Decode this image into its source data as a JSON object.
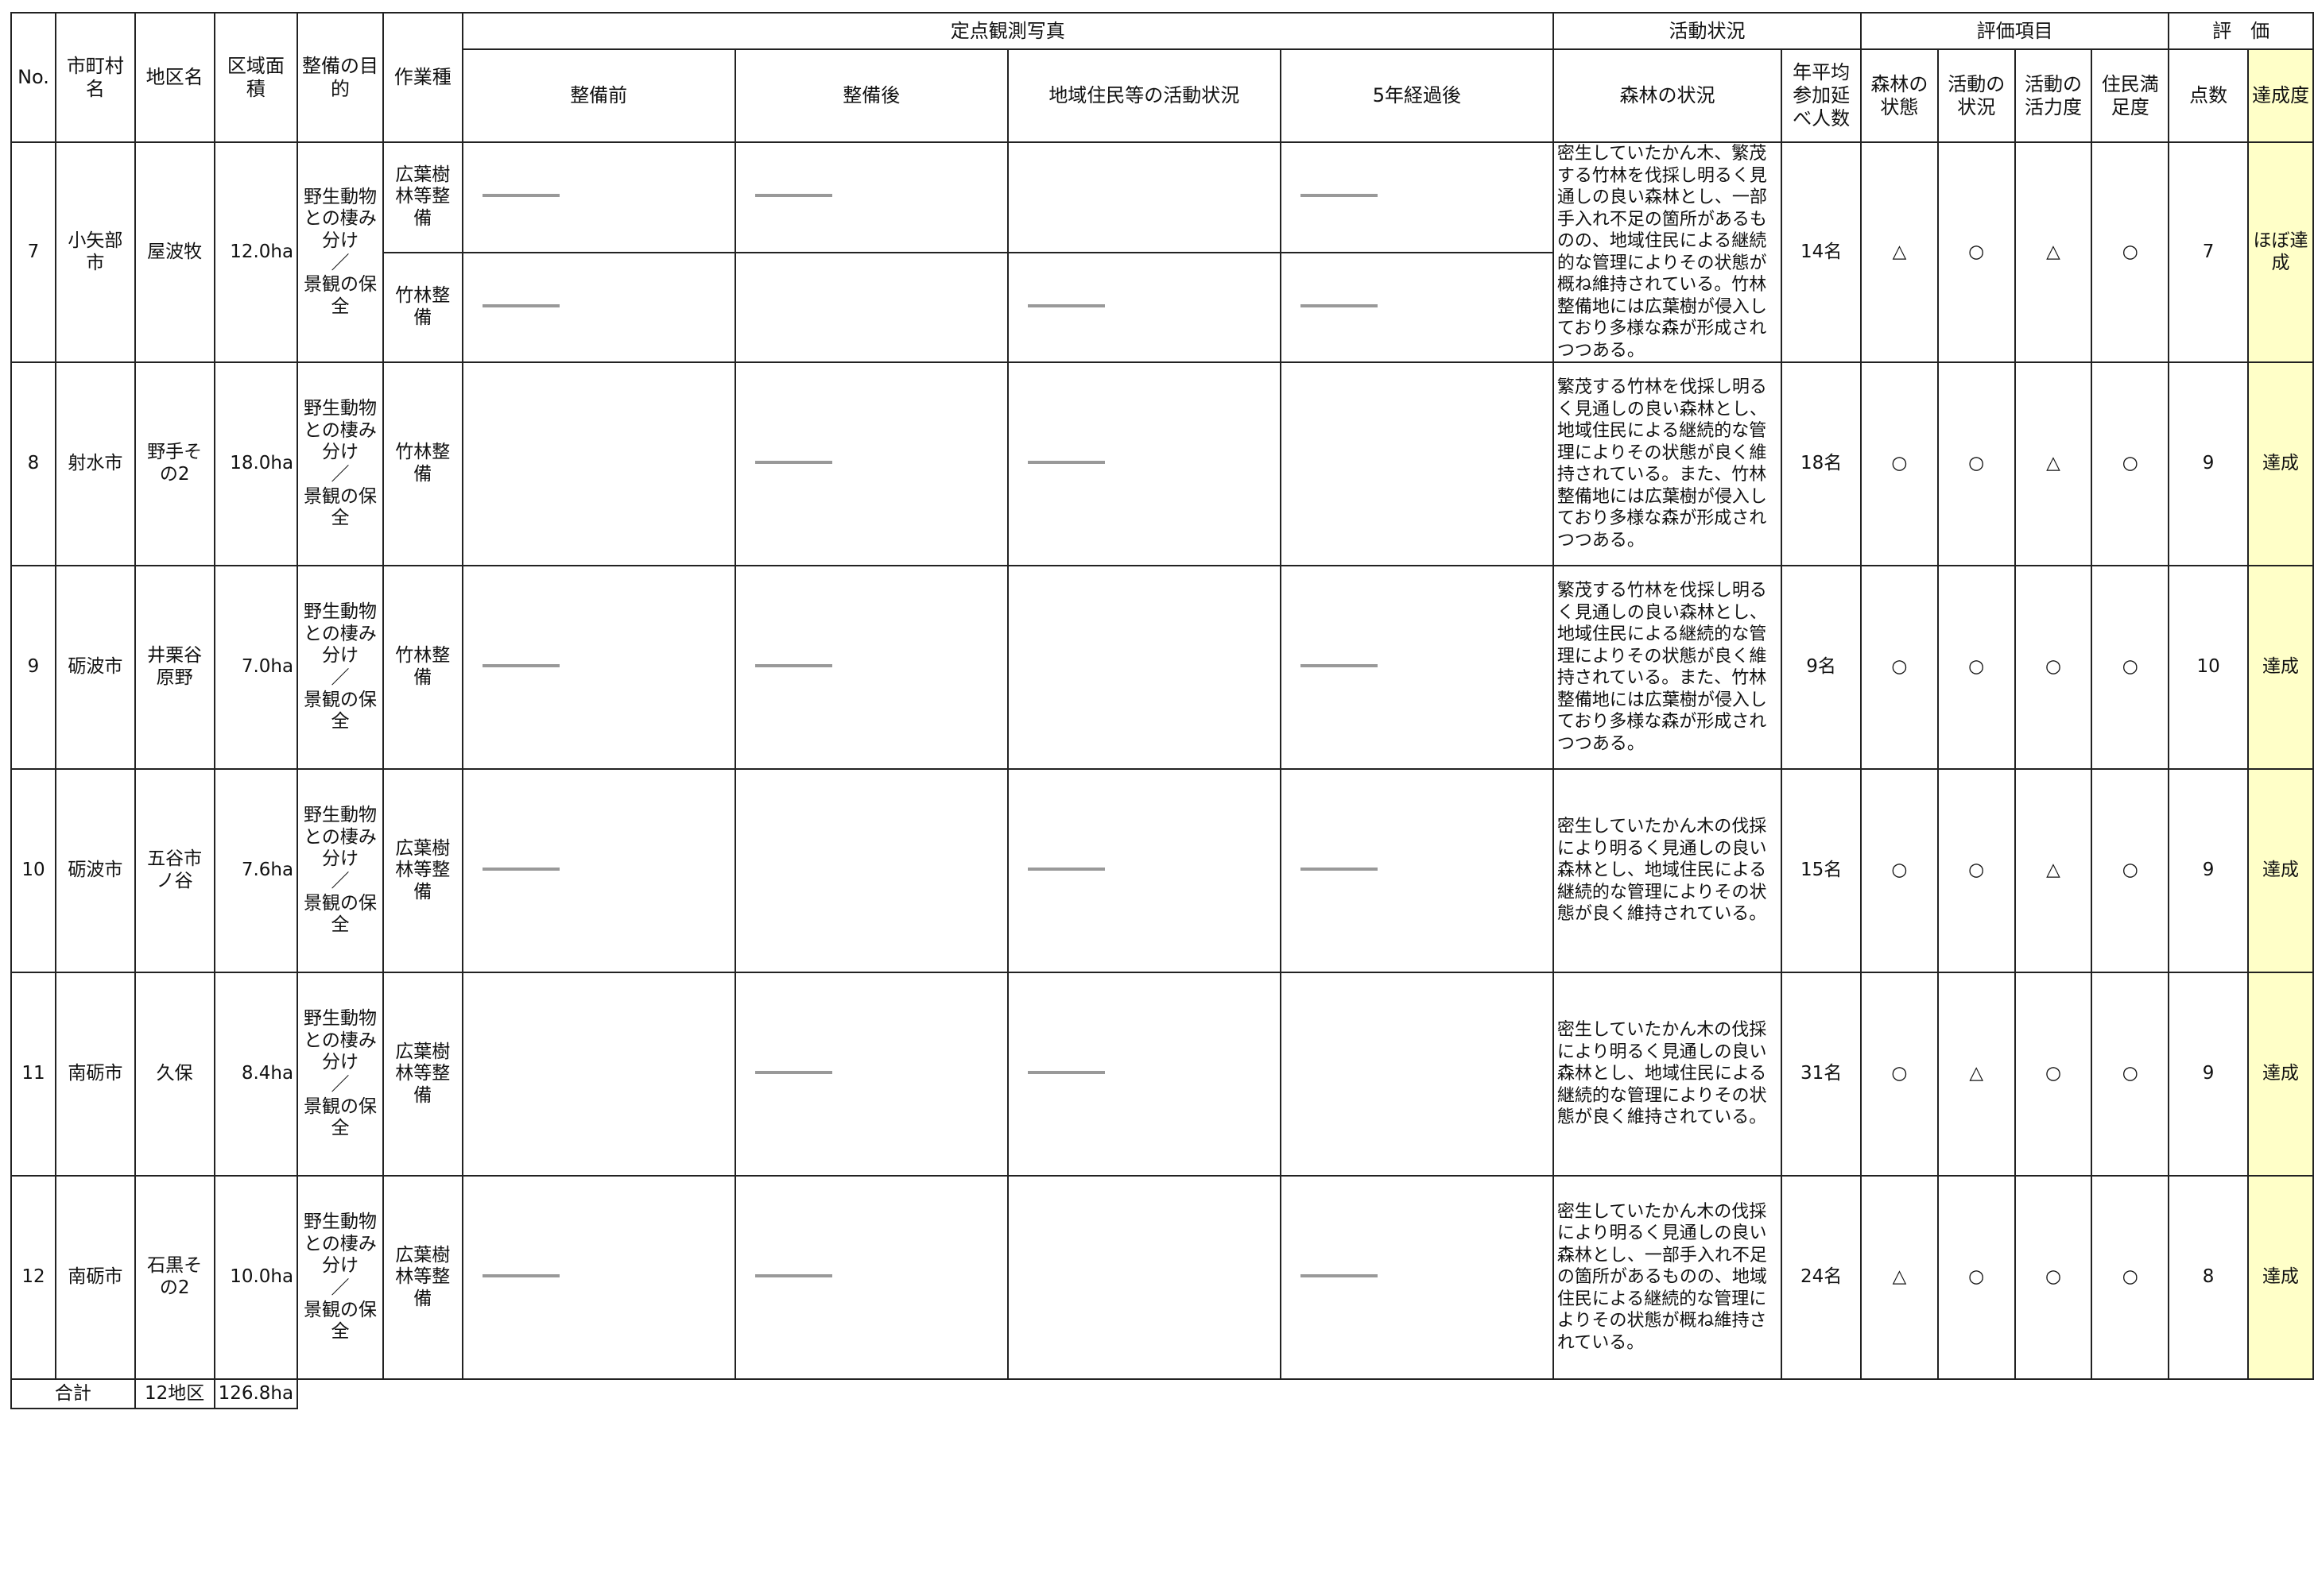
{
  "header": {
    "top": [
      "No.",
      "市町村名",
      "地区名",
      "区域面積",
      "整備の目的",
      "作業種"
    ],
    "photo_group": "定点観測写真",
    "photos": [
      "整備前",
      "整備後",
      "地域住民等の活動状況",
      "5年経過後"
    ],
    "activity_group": "活動状況",
    "activity": [
      "森林の状況",
      "年平均参加延べ人数"
    ],
    "eval_group": "評価項目",
    "eval": [
      "森林の状態",
      "活動の状況",
      "活動の活力度",
      "住民満足度"
    ],
    "rating_group": "評　価",
    "rating": [
      "点数",
      "達成度"
    ]
  },
  "rows": [
    {
      "no": 7,
      "city": "小矢部市",
      "district": "屋波牧",
      "area": "12.0ha",
      "purpose": "野生動物との棲み分け\n／\n景観の保全",
      "work_types": [
        "広葉樹林等整備",
        "竹林整備"
      ],
      "status": "密生していたかん木、繁茂する竹林を伐採し明るく見通しの良い森林とし、一部手入れ不足の箇所があるものの、地域住民による継続的な管理によりその状態が概ね維持されている。竹林整備地には広葉樹が侵入しており多様な森が形成されつつある。",
      "participants": "14名",
      "evals": [
        "△",
        "○",
        "△",
        "○"
      ],
      "score": 7,
      "achievement": "ほぼ達成"
    },
    {
      "no": 8,
      "city": "射水市",
      "district": "野手その2",
      "area": "18.0ha",
      "purpose": "野生動物との棲み分け\n／\n景観の保全",
      "work_types": [
        "竹林整備"
      ],
      "status": "繁茂する竹林を伐採し明るく見通しの良い森林とし、地域住民による継続的な管理によりその状態が良く維持されている。また、竹林整備地には広葉樹が侵入しており多様な森が形成されつつある。",
      "participants": "18名",
      "evals": [
        "○",
        "○",
        "△",
        "○"
      ],
      "score": 9,
      "achievement": "達成"
    },
    {
      "no": 9,
      "city": "砺波市",
      "district": "井栗谷原野",
      "area": "7.0ha",
      "purpose": "野生動物との棲み分け\n／\n景観の保全",
      "work_types": [
        "竹林整備"
      ],
      "status": "繁茂する竹林を伐採し明るく見通しの良い森林とし、地域住民による継続的な管理によりその状態が良く維持されている。また、竹林整備地には広葉樹が侵入しており多様な森が形成されつつある。",
      "participants": "9名",
      "evals": [
        "○",
        "○",
        "○",
        "○"
      ],
      "score": 10,
      "achievement": "達成"
    },
    {
      "no": 10,
      "city": "砺波市",
      "district": "五谷市ノ谷",
      "area": "7.6ha",
      "purpose": "野生動物との棲み分け\n／\n景観の保全",
      "work_types": [
        "広葉樹林等整備"
      ],
      "status": "密生していたかん木の伐採により明るく見通しの良い森林とし、地域住民による継続的な管理によりその状態が良く維持されている。",
      "participants": "15名",
      "evals": [
        "○",
        "○",
        "△",
        "○"
      ],
      "score": 9,
      "achievement": "達成"
    },
    {
      "no": 11,
      "city": "南砺市",
      "district": "久保",
      "area": "8.4ha",
      "purpose": "野生動物との棲み分け\n／\n景観の保全",
      "work_types": [
        "広葉樹林等整備"
      ],
      "status": "密生していたかん木の伐採により明るく見通しの良い森林とし、地域住民による継続的な管理によりその状態が良く維持されている。",
      "participants": "31名",
      "evals": [
        "○",
        "△",
        "○",
        "○"
      ],
      "score": 9,
      "achievement": "達成"
    },
    {
      "no": 12,
      "city": "南砺市",
      "district": "石黒その2",
      "area": "10.0ha",
      "purpose": "野生動物との棲み分け\n／\n景観の保全",
      "work_types": [
        "広葉樹林等整備"
      ],
      "status": "密生していたかん木の伐採により明るく見通しの良い森林とし、一部手入れ不足の箇所があるものの、地域住民による継続的な管理によりその状態が概ね維持されている。",
      "participants": "24名",
      "evals": [
        "△",
        "○",
        "○",
        "○"
      ],
      "score": 8,
      "achievement": "達成"
    }
  ],
  "total": {
    "label": "合計",
    "districts": "12地区",
    "area": "126.8ha"
  }
}
